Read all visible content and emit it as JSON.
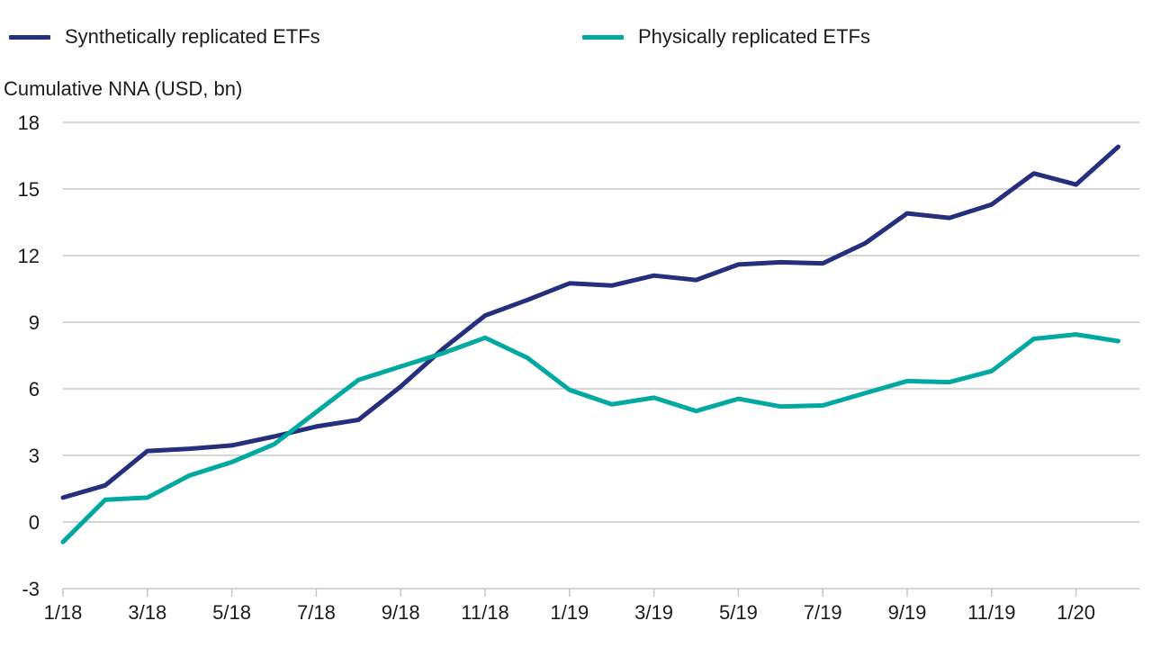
{
  "legend": {
    "items": [
      {
        "id": "synthetic",
        "label": "Synthetically replicated ETFs",
        "color": "#252F7D"
      },
      {
        "id": "physical",
        "label": "Physically replicated ETFs",
        "color": "#00A8A2"
      }
    ]
  },
  "axis_title": "Cumulative NNA (USD, bn)",
  "chart_data": {
    "type": "line",
    "title": "",
    "ylabel": "Cumulative NNA (USD, bn)",
    "x": [
      "1/18",
      "2/18",
      "3/18",
      "4/18",
      "5/18",
      "6/18",
      "7/18",
      "8/18",
      "9/18",
      "10/18",
      "11/18",
      "12/18",
      "1/19",
      "2/19",
      "3/19",
      "4/19",
      "5/19",
      "6/19",
      "7/19",
      "8/19",
      "9/19",
      "10/19",
      "11/19",
      "12/19",
      "1/20",
      "2/20"
    ],
    "x_tick_labels": [
      "1/18",
      "3/18",
      "5/18",
      "7/18",
      "9/18",
      "11/18",
      "1/19",
      "3/19",
      "5/19",
      "7/19",
      "9/19",
      "11/19",
      "1/20"
    ],
    "yticks": [
      -3,
      0,
      3,
      6,
      9,
      12,
      15,
      18
    ],
    "ylim": [
      -3,
      18
    ],
    "grid": true,
    "legend_position": "top",
    "series": [
      {
        "id": "synthetic",
        "name": "Synthetically replicated ETFs",
        "color": "#252F7D",
        "values": [
          1.1,
          1.65,
          3.2,
          3.3,
          3.45,
          3.85,
          4.3,
          4.6,
          6.1,
          7.8,
          9.3,
          10.0,
          10.75,
          10.65,
          11.1,
          10.9,
          11.6,
          11.7,
          11.65,
          12.55,
          13.9,
          13.7,
          14.3,
          15.7,
          15.2,
          16.9
        ]
      },
      {
        "id": "physical",
        "name": "Physically replicated ETFs",
        "color": "#00A8A2",
        "values": [
          -0.9,
          1.0,
          1.1,
          2.1,
          2.7,
          3.5,
          4.95,
          6.4,
          7.0,
          7.6,
          8.3,
          7.4,
          5.95,
          5.3,
          5.6,
          5.0,
          5.55,
          5.2,
          5.25,
          5.8,
          6.35,
          6.3,
          6.8,
          8.25,
          8.45,
          8.15
        ]
      }
    ]
  }
}
